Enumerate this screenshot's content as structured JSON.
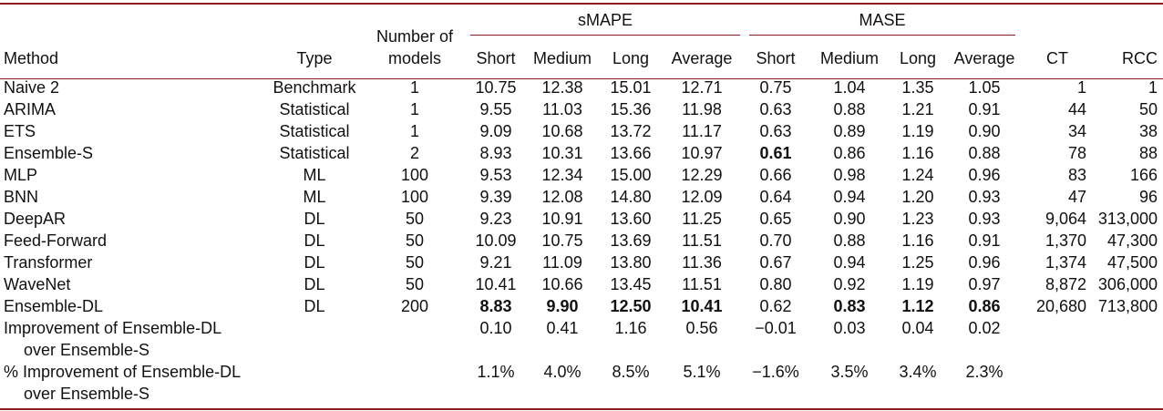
{
  "header": {
    "group_smape": "sMAPE",
    "group_mase": "MASE",
    "method": "Method",
    "type": "Type",
    "num_models_line1": "Number of",
    "num_models_line2": "models",
    "short": "Short",
    "medium": "Medium",
    "long": "Long",
    "average": "Average",
    "ct": "CT",
    "rcc": "RCC"
  },
  "rows": [
    {
      "method": "Naive 2",
      "type": "Benchmark",
      "n": "1",
      "s_short": "10.75",
      "s_med": "12.38",
      "s_long": "15.01",
      "s_avg": "12.71",
      "m_short": "0.75",
      "m_med": "1.04",
      "m_long": "1.35",
      "m_avg": "1.05",
      "ct": "1",
      "rcc": "1"
    },
    {
      "method": "ARIMA",
      "type": "Statistical",
      "n": "1",
      "s_short": "9.55",
      "s_med": "11.03",
      "s_long": "15.36",
      "s_avg": "11.98",
      "m_short": "0.63",
      "m_med": "0.88",
      "m_long": "1.21",
      "m_avg": "0.91",
      "ct": "44",
      "rcc": "50"
    },
    {
      "method": "ETS",
      "type": "Statistical",
      "n": "1",
      "s_short": "9.09",
      "s_med": "10.68",
      "s_long": "13.72",
      "s_avg": "11.17",
      "m_short": "0.63",
      "m_med": "0.89",
      "m_long": "1.19",
      "m_avg": "0.90",
      "ct": "34",
      "rcc": "38"
    },
    {
      "method": "Ensemble-S",
      "type": "Statistical",
      "n": "2",
      "s_short": "8.93",
      "s_med": "10.31",
      "s_long": "13.66",
      "s_avg": "10.97",
      "m_short": "0.61",
      "m_med": "0.86",
      "m_long": "1.16",
      "m_avg": "0.88",
      "ct": "78",
      "rcc": "88"
    },
    {
      "method": "MLP",
      "type": "ML",
      "n": "100",
      "s_short": "9.53",
      "s_med": "12.34",
      "s_long": "15.00",
      "s_avg": "12.29",
      "m_short": "0.66",
      "m_med": "0.98",
      "m_long": "1.24",
      "m_avg": "0.96",
      "ct": "83",
      "rcc": "166"
    },
    {
      "method": "BNN",
      "type": "ML",
      "n": "100",
      "s_short": "9.39",
      "s_med": "12.08",
      "s_long": "14.80",
      "s_avg": "12.09",
      "m_short": "0.64",
      "m_med": "0.94",
      "m_long": "1.20",
      "m_avg": "0.93",
      "ct": "47",
      "rcc": "96"
    },
    {
      "method": "DeepAR",
      "type": "DL",
      "n": "50",
      "s_short": "9.23",
      "s_med": "10.91",
      "s_long": "13.60",
      "s_avg": "11.25",
      "m_short": "0.65",
      "m_med": "0.90",
      "m_long": "1.23",
      "m_avg": "0.93",
      "ct": "9,064",
      "rcc": "313,000"
    },
    {
      "method": "Feed-Forward",
      "type": "DL",
      "n": "50",
      "s_short": "10.09",
      "s_med": "10.75",
      "s_long": "13.69",
      "s_avg": "11.51",
      "m_short": "0.70",
      "m_med": "0.88",
      "m_long": "1.16",
      "m_avg": "0.91",
      "ct": "1,370",
      "rcc": "47,300"
    },
    {
      "method": "Transformer",
      "type": "DL",
      "n": "50",
      "s_short": "9.21",
      "s_med": "11.09",
      "s_long": "13.80",
      "s_avg": "11.36",
      "m_short": "0.67",
      "m_med": "0.94",
      "m_long": "1.25",
      "m_avg": "0.96",
      "ct": "1,374",
      "rcc": "47,500"
    },
    {
      "method": "WaveNet",
      "type": "DL",
      "n": "50",
      "s_short": "10.41",
      "s_med": "10.66",
      "s_long": "13.45",
      "s_avg": "11.51",
      "m_short": "0.80",
      "m_med": "0.92",
      "m_long": "1.19",
      "m_avg": "0.97",
      "ct": "8,872",
      "rcc": "306,000"
    },
    {
      "method": "Ensemble-DL",
      "type": "DL",
      "n": "200",
      "s_short": "8.83",
      "s_med": "9.90",
      "s_long": "12.50",
      "s_avg": "10.41",
      "m_short": "0.62",
      "m_med": "0.83",
      "m_long": "1.12",
      "m_avg": "0.86",
      "ct": "20,680",
      "rcc": "713,800"
    }
  ],
  "bold_cells": {
    "Ensemble-S": [
      "m_short"
    ],
    "Ensemble-DL": [
      "s_short",
      "s_med",
      "s_long",
      "s_avg",
      "m_med",
      "m_long",
      "m_avg"
    ]
  },
  "improvement": {
    "label_line1": "Improvement of Ensemble-DL",
    "label_line2": "over Ensemble-S",
    "s_short": "0.10",
    "s_med": "0.41",
    "s_long": "1.16",
    "s_avg": "0.56",
    "m_short": "−0.01",
    "m_med": "0.03",
    "m_long": "0.04",
    "m_avg": "0.02"
  },
  "pct_improvement": {
    "label_line1": "% Improvement of Ensemble-DL",
    "label_line2": "over Ensemble-S",
    "s_short": "1.1%",
    "s_med": "4.0%",
    "s_long": "8.5%",
    "s_avg": "5.1%",
    "m_short": "−1.6%",
    "m_med": "3.5%",
    "m_long": "3.4%",
    "m_avg": "2.3%"
  }
}
